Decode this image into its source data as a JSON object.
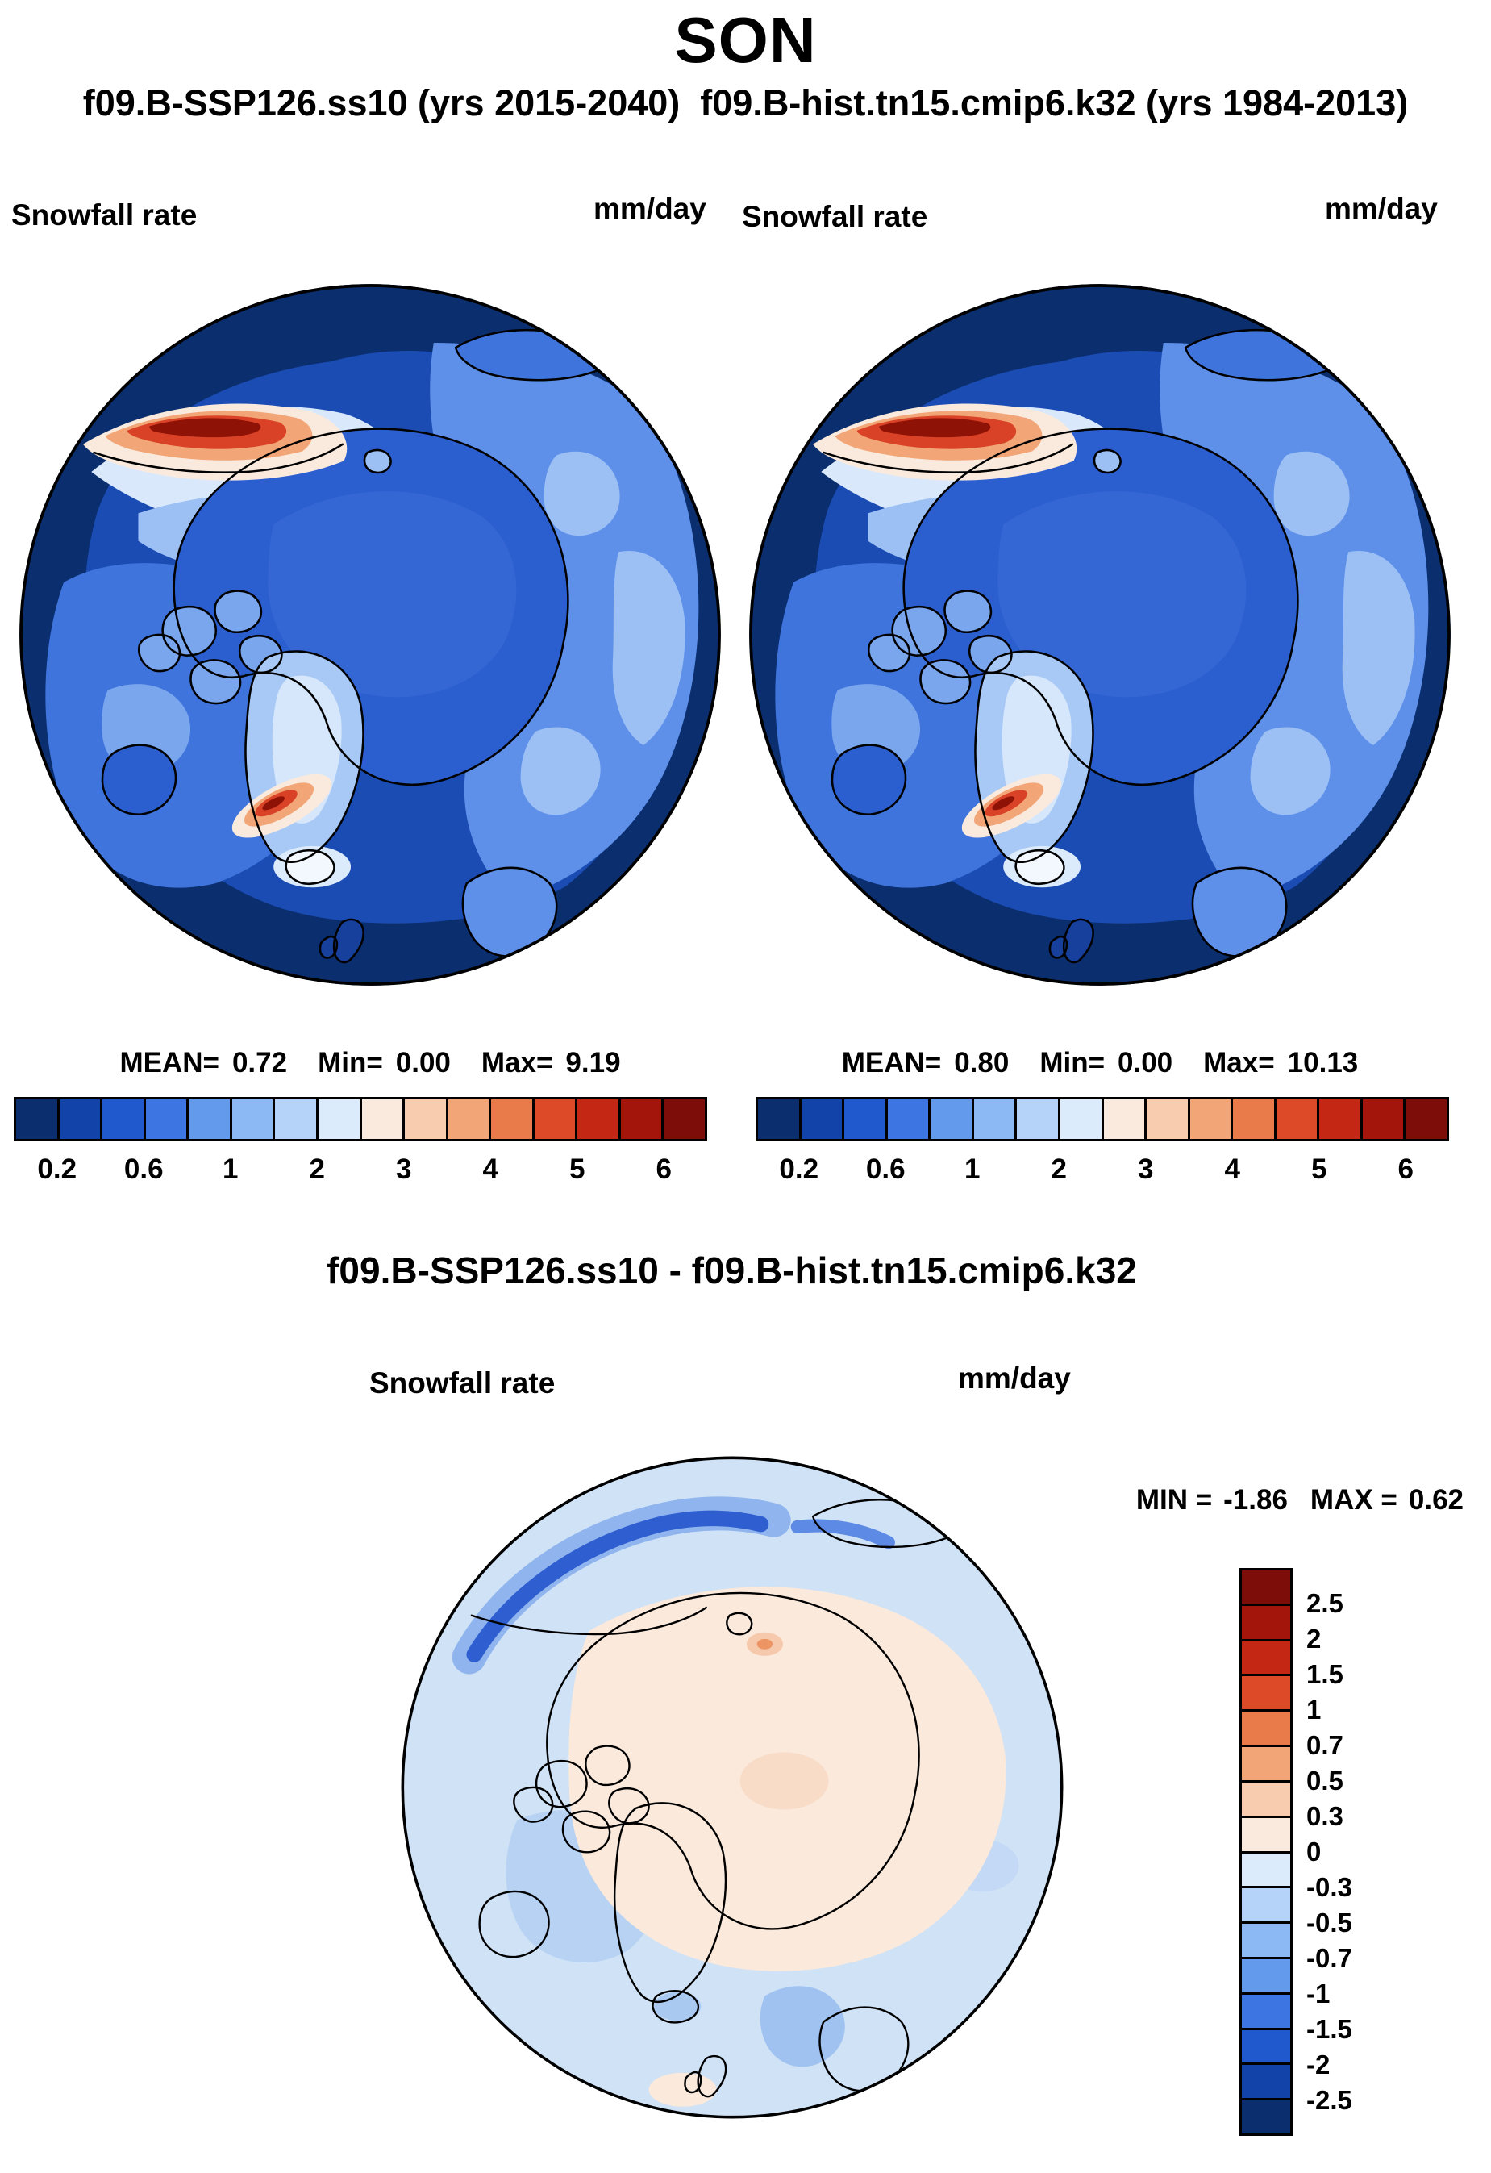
{
  "title": "SON",
  "subtitle": "f09.B-SSP126.ss10 (yrs 2015-2040)  f09.B-hist.tn15.cmip6.k32 (yrs 1984-2013)",
  "panels": {
    "left": {
      "var_label": "Snowfall rate",
      "units_label": "mm/day",
      "stats": {
        "mean_label": "MEAN=",
        "mean": "0.72",
        "min_label": "Min=",
        "min": "0.00",
        "max_label": "Max=",
        "max": "9.19"
      }
    },
    "right": {
      "var_label": "Snowfall rate",
      "units_label": "mm/day",
      "stats": {
        "mean_label": "MEAN=",
        "mean": "0.80",
        "min_label": "Min=",
        "min": "0.00",
        "max_label": "Max=",
        "max": "10.13"
      }
    }
  },
  "colorbar_top": {
    "ticks": [
      "0.2",
      "0.6",
      "1",
      "2",
      "3",
      "4",
      "5",
      "6"
    ],
    "colors": [
      "#0a2e6e",
      "#1243a8",
      "#2058cd",
      "#3d76e3",
      "#639aec",
      "#8cb8f3",
      "#b5d2f8",
      "#dcebfb",
      "#faeadd",
      "#f8cdaf",
      "#f2a577",
      "#e97a4a",
      "#dd4a28",
      "#c42814",
      "#a3150b",
      "#7c0d08"
    ]
  },
  "diff": {
    "title": "f09.B-SSP126.ss10 - f09.B-hist.tn15.cmip6.k32",
    "var_label": "Snowfall rate",
    "units_label": "mm/day",
    "min_label": "MIN =",
    "min": "-1.86",
    "max_label": "MAX =",
    "max": "0.62",
    "colorbar": {
      "ticks": [
        "2.5",
        "2",
        "1.5",
        "1",
        "0.7",
        "0.5",
        "0.3",
        "0",
        "-0.3",
        "-0.5",
        "-0.7",
        "-1",
        "-1.5",
        "-2",
        "-2.5"
      ],
      "colors": [
        "#7c0d08",
        "#a3150b",
        "#c42814",
        "#dd4a28",
        "#e97a4a",
        "#f2a577",
        "#f8cdaf",
        "#faeadd",
        "#dcebfb",
        "#b5d2f8",
        "#8cb8f3",
        "#639aec",
        "#3d76e3",
        "#2058cd",
        "#1243a8",
        "#0a2e6e"
      ]
    }
  },
  "chart_data": [
    {
      "type": "heatmap",
      "subtype": "polar_stereographic_map",
      "season": "SON",
      "title": "f09.B-SSP126.ss10 (yrs 2015-2040)",
      "variable": "Snowfall rate",
      "units": "mm/day",
      "stats": {
        "mean": 0.72,
        "min": 0.0,
        "max": 9.19
      },
      "colorbar_orientation": "horizontal-bottom",
      "colorbar_ticks": [
        0.2,
        0.6,
        1,
        2,
        3,
        4,
        5,
        6
      ],
      "colorbar_colors": [
        "#0a2e6e",
        "#1243a8",
        "#2058cd",
        "#3d76e3",
        "#639aec",
        "#8cb8f3",
        "#b5d2f8",
        "#dcebfb",
        "#faeadd",
        "#f8cdaf",
        "#f2a577",
        "#e97a4a",
        "#dd4a28",
        "#c42814",
        "#a3150b",
        "#7c0d08"
      ],
      "region": "Arctic polar cap view",
      "notable_features": [
        "high snowfall (red/orange, >5 mm/day) band along Norwegian coast and at southern Greenland tip",
        "moderate snowfall (mid blue, ~1-2 mm/day) over central Arctic Ocean",
        "lowest values (dark navy, <0.2 mm/day) over North Atlantic and map rim oceans"
      ]
    },
    {
      "type": "heatmap",
      "subtype": "polar_stereographic_map",
      "season": "SON",
      "title": "f09.B-hist.tn15.cmip6.k32 (yrs 1984-2013)",
      "variable": "Snowfall rate",
      "units": "mm/day",
      "stats": {
        "mean": 0.8,
        "min": 0.0,
        "max": 10.13
      },
      "colorbar_orientation": "horizontal-bottom",
      "colorbar_ticks": [
        0.2,
        0.6,
        1,
        2,
        3,
        4,
        5,
        6
      ],
      "colorbar_colors": [
        "#0a2e6e",
        "#1243a8",
        "#2058cd",
        "#3d76e3",
        "#639aec",
        "#8cb8f3",
        "#b5d2f8",
        "#dcebfb",
        "#faeadd",
        "#f8cdaf",
        "#f2a577",
        "#e97a4a",
        "#dd4a28",
        "#c42814",
        "#a3150b",
        "#7c0d08"
      ],
      "region": "Arctic polar cap view",
      "notable_features": [
        "spatial pattern nearly identical to SSP126 panel with slightly higher maximum"
      ]
    },
    {
      "type": "heatmap",
      "subtype": "polar_stereographic_map",
      "season": "SON",
      "title": "f09.B-SSP126.ss10 - f09.B-hist.tn15.cmip6.k32",
      "variable": "Snowfall rate difference",
      "units": "mm/day",
      "stats": {
        "min": -1.86,
        "max": 0.62
      },
      "colorbar_orientation": "vertical-right",
      "colorbar_ticks": [
        2.5,
        2,
        1.5,
        1,
        0.7,
        0.5,
        0.3,
        0,
        -0.3,
        -0.5,
        -0.7,
        -1,
        -1.5,
        -2,
        -2.5
      ],
      "colorbar_colors": [
        "#7c0d08",
        "#a3150b",
        "#c42814",
        "#dd4a28",
        "#e97a4a",
        "#f2a577",
        "#f8cdaf",
        "#faeadd",
        "#dcebfb",
        "#b5d2f8",
        "#8cb8f3",
        "#639aec",
        "#3d76e3",
        "#2058cd",
        "#1243a8",
        "#0a2e6e"
      ],
      "region": "Arctic polar cap view",
      "notable_features": [
        "weak positive difference (pale orange, 0 to 0.3 mm/day) over central Arctic land/ice",
        "negative differences (light to medium blue) over surrounding oceans",
        "strongest negative band (dark blue, about -1 to -2 mm/day) along upper-left rim near Norwegian/Siberian coast"
      ]
    }
  ]
}
